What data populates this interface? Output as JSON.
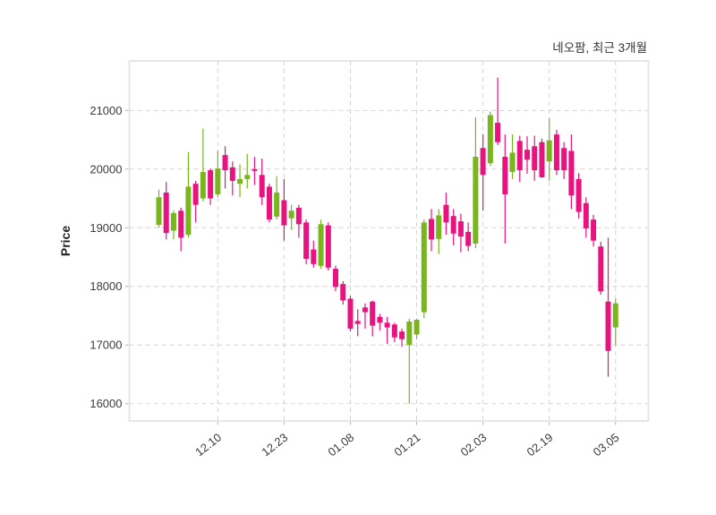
{
  "title": "네오팜, 최근 3개월",
  "chart_data": {
    "type": "candlestick",
    "title": "네오팜, 최근 3개월",
    "ylabel": "Price",
    "ylim": [
      15705,
      21845
    ],
    "y_ticks": [
      16000,
      17000,
      18000,
      19000,
      20000,
      21000
    ],
    "x_tick_labels": [
      "12.10",
      "12.23",
      "01.08",
      "01.21",
      "02.03",
      "02.19",
      "03.05"
    ],
    "x_tick_indices": [
      8,
      17,
      26,
      35,
      44,
      53,
      62
    ],
    "grid": true,
    "legend": "none",
    "colors": {
      "up": "#79b51d",
      "down": "#e8137f",
      "grid": "#d4d4d4",
      "border": "#e4e4e4",
      "tick_text": "#3b3b3b",
      "tick_mark": "#b5b5b5"
    },
    "candles_format": "[open, high, low, close]",
    "candles": [
      [
        19050,
        19650,
        19000,
        19520
      ],
      [
        19600,
        19780,
        18800,
        18910
      ],
      [
        18950,
        19300,
        18800,
        19250
      ],
      [
        19290,
        19340,
        18600,
        18830
      ],
      [
        18880,
        20290,
        18830,
        19700
      ],
      [
        19750,
        19800,
        19090,
        19390
      ],
      [
        19500,
        20690,
        19450,
        19950
      ],
      [
        19980,
        20010,
        19390,
        19500
      ],
      [
        19570,
        20310,
        19520,
        20010
      ],
      [
        20240,
        20390,
        19670,
        19980
      ],
      [
        20030,
        20130,
        19550,
        19800
      ],
      [
        19750,
        20080,
        19520,
        19830
      ],
      [
        19830,
        20260,
        19670,
        19900
      ],
      [
        20000,
        20210,
        19730,
        19970
      ],
      [
        19900,
        20180,
        19390,
        19520
      ],
      [
        19700,
        19750,
        19090,
        19140
      ],
      [
        19190,
        19880,
        19140,
        19600
      ],
      [
        19470,
        19830,
        18780,
        19040
      ],
      [
        19160,
        19390,
        18960,
        19290
      ],
      [
        19340,
        19390,
        18830,
        19060
      ],
      [
        19090,
        19140,
        18380,
        18470
      ],
      [
        18630,
        18780,
        18320,
        18380
      ],
      [
        18350,
        19140,
        18300,
        19060
      ],
      [
        19040,
        19090,
        18270,
        18320
      ],
      [
        18300,
        18350,
        17920,
        17990
      ],
      [
        18040,
        18090,
        17690,
        17760
      ],
      [
        17790,
        17840,
        17230,
        17280
      ],
      [
        17410,
        17610,
        17150,
        17360
      ],
      [
        17640,
        17710,
        17280,
        17560
      ],
      [
        17740,
        17760,
        17150,
        17330
      ],
      [
        17480,
        17530,
        17250,
        17380
      ],
      [
        17380,
        17480,
        17020,
        17300
      ],
      [
        17350,
        17380,
        17050,
        17130
      ],
      [
        17230,
        17280,
        16970,
        17100
      ],
      [
        17000,
        17450,
        16000,
        17400
      ],
      [
        17180,
        17450,
        17100,
        17430
      ],
      [
        17560,
        19140,
        17460,
        19090
      ],
      [
        19150,
        19320,
        18600,
        18800
      ],
      [
        18810,
        19320,
        18550,
        19210
      ],
      [
        19390,
        19600,
        18880,
        19090
      ],
      [
        19200,
        19320,
        18700,
        18900
      ],
      [
        19110,
        19240,
        18580,
        18850
      ],
      [
        18930,
        19090,
        18600,
        18690
      ],
      [
        18730,
        20880,
        18650,
        20210
      ],
      [
        20360,
        20590,
        19290,
        19900
      ],
      [
        20100,
        20980,
        20050,
        20920
      ],
      [
        20790,
        21560,
        20410,
        20460
      ],
      [
        20210,
        20590,
        18730,
        19570
      ],
      [
        19950,
        20590,
        19830,
        20280
      ],
      [
        20480,
        20570,
        19780,
        19980
      ],
      [
        20330,
        20560,
        19920,
        20160
      ],
      [
        20390,
        20570,
        19800,
        19980
      ],
      [
        20460,
        20520,
        19850,
        19860
      ],
      [
        20130,
        20870,
        19800,
        20490
      ],
      [
        20590,
        20670,
        19900,
        19980
      ],
      [
        20360,
        20460,
        19830,
        19980
      ],
      [
        20310,
        20590,
        19320,
        19550
      ],
      [
        19830,
        19930,
        19160,
        19270
      ],
      [
        19420,
        19520,
        18830,
        18990
      ],
      [
        19140,
        19220,
        18680,
        18780
      ],
      [
        18680,
        18760,
        17860,
        17915
      ],
      [
        17740,
        18830,
        16460,
        16900
      ],
      [
        17300,
        17790,
        17000,
        17710
      ]
    ]
  }
}
